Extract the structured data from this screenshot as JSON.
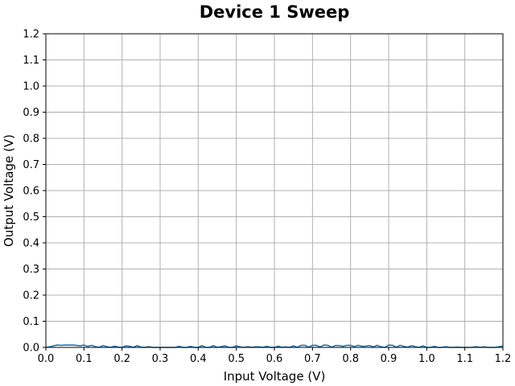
{
  "chart_data": {
    "type": "line",
    "title": "Device 1 Sweep",
    "xlabel": "Input Voltage (V)",
    "ylabel": "Output Voltage (V)",
    "xlim": [
      0.0,
      1.2
    ],
    "ylim": [
      0.0,
      1.2
    ],
    "xticks": [
      "0.0",
      "0.1",
      "0.2",
      "0.3",
      "0.4",
      "0.5",
      "0.6",
      "0.7",
      "0.8",
      "0.9",
      "1.0",
      "1.1",
      "1.2"
    ],
    "yticks": [
      "0.0",
      "0.1",
      "0.2",
      "0.3",
      "0.4",
      "0.5",
      "0.6",
      "0.7",
      "0.8",
      "0.9",
      "1.0",
      "1.1",
      "1.2"
    ],
    "grid": true,
    "line_color": "#1f77b4",
    "series": [
      {
        "name": "Device 1",
        "x": [
          0.0,
          0.01,
          0.02,
          0.03,
          0.04,
          0.05,
          0.06,
          0.07,
          0.08,
          0.09,
          0.1,
          0.11,
          0.12,
          0.13,
          0.14,
          0.15,
          0.16,
          0.17,
          0.18,
          0.19,
          0.2,
          0.21,
          0.22,
          0.23,
          0.24,
          0.25,
          0.26,
          0.27,
          0.28,
          0.29,
          0.3,
          0.31,
          0.32,
          0.33,
          0.34,
          0.35,
          0.36,
          0.37,
          0.38,
          0.39,
          0.4,
          0.41,
          0.42,
          0.43,
          0.44,
          0.45,
          0.46,
          0.47,
          0.48,
          0.49,
          0.5,
          0.51,
          0.52,
          0.53,
          0.54,
          0.55,
          0.56,
          0.57,
          0.58,
          0.59,
          0.6,
          0.61,
          0.62,
          0.63,
          0.64,
          0.65,
          0.66,
          0.67,
          0.68,
          0.69,
          0.7,
          0.71,
          0.72,
          0.73,
          0.74,
          0.75,
          0.76,
          0.77,
          0.78,
          0.79,
          0.8,
          0.81,
          0.82,
          0.83,
          0.84,
          0.85,
          0.86,
          0.87,
          0.88,
          0.89,
          0.9,
          0.91,
          0.92,
          0.93,
          0.94,
          0.95,
          0.96,
          0.97,
          0.98,
          0.99,
          1.0,
          1.01,
          1.02,
          1.03,
          1.04,
          1.05,
          1.06,
          1.07,
          1.08,
          1.09,
          1.1,
          1.11,
          1.12,
          1.13,
          1.14,
          1.15,
          1.16,
          1.17,
          1.18,
          1.19,
          1.2
        ],
        "y": [
          0.0,
          0.002,
          0.006,
          0.009,
          0.008,
          0.009,
          0.009,
          0.009,
          0.008,
          0.006,
          0.009,
          0.004,
          0.008,
          0.003,
          0.0,
          0.007,
          0.003,
          0.0,
          0.005,
          0.001,
          0.0,
          0.006,
          0.004,
          0.0,
          0.007,
          0.001,
          0.0,
          0.003,
          0.0,
          0.0,
          0.0,
          0.0,
          0.0,
          0.0,
          0.0,
          0.004,
          0.0,
          0.0,
          0.004,
          0.0,
          0.0,
          0.007,
          0.0,
          0.0,
          0.007,
          0.0,
          0.003,
          0.006,
          0.0,
          0.0,
          0.006,
          0.002,
          0.0,
          0.003,
          0.0,
          0.002,
          0.002,
          0.0,
          0.004,
          0.0,
          0.0,
          0.005,
          0.0,
          0.002,
          0.0,
          0.006,
          0.0,
          0.008,
          0.008,
          0.001,
          0.008,
          0.008,
          0.002,
          0.009,
          0.008,
          0.001,
          0.007,
          0.007,
          0.004,
          0.008,
          0.008,
          0.003,
          0.008,
          0.004,
          0.005,
          0.007,
          0.002,
          0.008,
          0.002,
          0.0,
          0.009,
          0.008,
          0.001,
          0.008,
          0.004,
          0.001,
          0.007,
          0.003,
          0.0,
          0.006,
          0.0,
          0.0,
          0.004,
          0.0,
          0.0,
          0.003,
          0.0,
          0.0,
          0.001,
          0.0,
          0.0,
          0.0,
          0.0,
          0.003,
          0.0,
          0.002,
          0.0,
          0.0,
          0.0,
          0.003,
          0.005
        ]
      }
    ]
  }
}
